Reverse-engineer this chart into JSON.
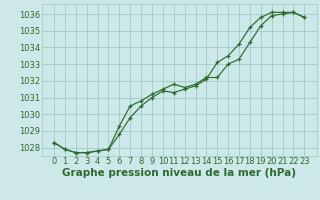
{
  "xlabel": "Graphe pression niveau de la mer (hPa)",
  "hours": [
    0,
    1,
    2,
    3,
    4,
    5,
    6,
    7,
    8,
    9,
    10,
    11,
    12,
    13,
    14,
    15,
    16,
    17,
    18,
    19,
    20,
    21,
    22,
    23
  ],
  "line1": [
    1028.3,
    1027.9,
    1027.7,
    1027.7,
    1027.8,
    1027.9,
    1028.8,
    1029.8,
    1030.5,
    1031.0,
    1031.4,
    1031.3,
    1031.5,
    1031.7,
    1032.1,
    1033.1,
    1033.5,
    1034.2,
    1035.2,
    1035.8,
    1036.1,
    1036.1,
    1036.1,
    1035.8
  ],
  "line2": [
    1028.3,
    1027.9,
    1027.7,
    1027.7,
    1027.8,
    1027.9,
    1029.3,
    1030.5,
    1030.8,
    1031.2,
    1031.5,
    1031.8,
    1031.6,
    1031.8,
    1032.2,
    1032.2,
    1033.0,
    1033.3,
    1034.3,
    1035.3,
    1035.9,
    1036.0,
    1036.1,
    1035.8
  ],
  "line_color": "#2d6a2d",
  "bg_color": "#cce8e8",
  "grid_color": "#a0c8c8",
  "ylim": [
    1027.5,
    1036.6
  ],
  "yticks": [
    1028,
    1029,
    1030,
    1031,
    1032,
    1033,
    1034,
    1035,
    1036
  ],
  "xticks": [
    0,
    1,
    2,
    3,
    4,
    5,
    6,
    7,
    8,
    9,
    10,
    11,
    12,
    13,
    14,
    15,
    16,
    17,
    18,
    19,
    20,
    21,
    22,
    23
  ],
  "xlabel_fontsize": 7.5,
  "tick_fontsize": 6,
  "marker": "+"
}
